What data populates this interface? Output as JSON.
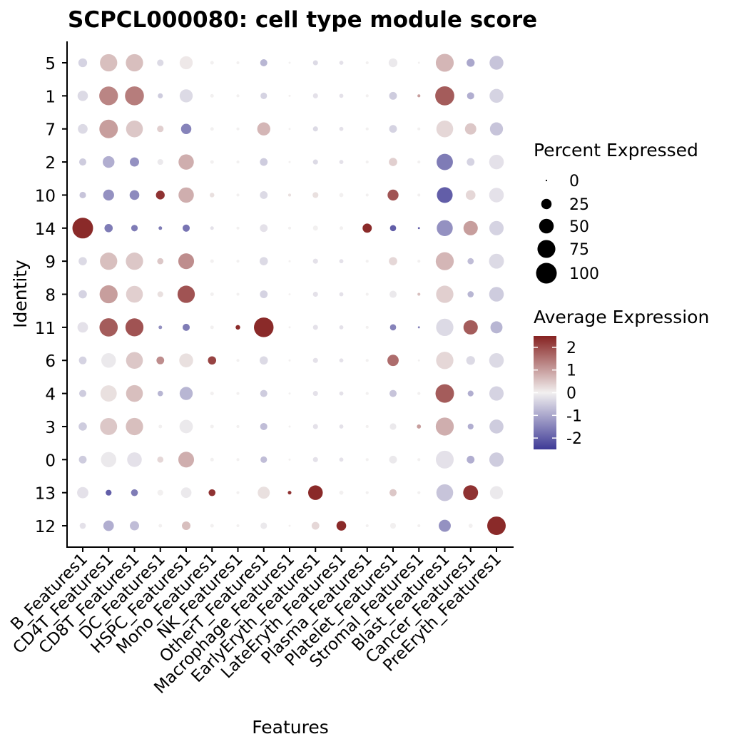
{
  "chart_data": {
    "type": "dotplot",
    "title": "SCPCL000080: cell type module score",
    "xlabel": "Features",
    "ylabel": "Identity",
    "features": [
      "B_Features1",
      "CD4T_Features1",
      "CD8T_Features1",
      "DC_Features1",
      "HSPC_Features1",
      "Mono_Features1",
      "NK_Features1",
      "OtherT_Features1",
      "Macrophage_Features1",
      "EarlyEryth_Features1",
      "LateEryth_Features1",
      "Plasma_Features1",
      "Platelet_Features1",
      "Stromal_Features1",
      "Blast_Features1",
      "Cancer_Features1",
      "PreEryth_Features1"
    ],
    "identities": [
      "5",
      "1",
      "7",
      "2",
      "10",
      "14",
      "9",
      "8",
      "11",
      "6",
      "4",
      "3",
      "0",
      "13",
      "12"
    ],
    "pct_expressed": [
      [
        18,
        70,
        70,
        10,
        40,
        3,
        2,
        12,
        1,
        6,
        4,
        2,
        18,
        1,
        75,
        15,
        45
      ],
      [
        25,
        82,
        84,
        6,
        40,
        3,
        2,
        10,
        1,
        6,
        4,
        2,
        14,
        2,
        85,
        12,
        45
      ],
      [
        22,
        80,
        66,
        10,
        25,
        3,
        2,
        40,
        1,
        6,
        4,
        2,
        14,
        2,
        66,
        30,
        40
      ],
      [
        12,
        32,
        20,
        8,
        55,
        3,
        2,
        14,
        1,
        6,
        4,
        2,
        16,
        2,
        62,
        14,
        50
      ],
      [
        10,
        28,
        22,
        18,
        55,
        5,
        2,
        14,
        2,
        8,
        4,
        2,
        28,
        2,
        58,
        22,
        50
      ],
      [
        100,
        16,
        10,
        3,
        12,
        3,
        2,
        14,
        2,
        6,
        3,
        20,
        9,
        1,
        60,
        48,
        48
      ],
      [
        16,
        70,
        70,
        9,
        58,
        3,
        2,
        16,
        1,
        6,
        4,
        2,
        16,
        2,
        76,
        9,
        52
      ],
      [
        16,
        76,
        66,
        8,
        70,
        3,
        2,
        14,
        1,
        6,
        4,
        2,
        12,
        2,
        70,
        9,
        50
      ],
      [
        26,
        78,
        76,
        3,
        12,
        3,
        5,
        90,
        1,
        6,
        4,
        2,
        9,
        1,
        70,
        48,
        34
      ],
      [
        14,
        50,
        66,
        14,
        45,
        16,
        2,
        16,
        1,
        6,
        4,
        2,
        30,
        1,
        70,
        18,
        50
      ],
      [
        12,
        62,
        66,
        7,
        40,
        3,
        2,
        12,
        1,
        6,
        4,
        2,
        12,
        2,
        80,
        8,
        48
      ],
      [
        16,
        68,
        70,
        3,
        42,
        3,
        2,
        12,
        1,
        6,
        4,
        2,
        10,
        4,
        76,
        8,
        46
      ],
      [
        14,
        55,
        50,
        9,
        58,
        3,
        2,
        10,
        1,
        6,
        4,
        2,
        14,
        2,
        74,
        14,
        48
      ],
      [
        30,
        8,
        11,
        8,
        26,
        11,
        2,
        34,
        3,
        50,
        4,
        2,
        12,
        2,
        66,
        52,
        40
      ],
      [
        9,
        26,
        20,
        3,
        17,
        3,
        2,
        10,
        1,
        14,
        22,
        2,
        8,
        2,
        34,
        4,
        80
      ]
    ],
    "avg_expression": [
      [
        -0.4,
        0.6,
        0.6,
        -0.3,
        0.1,
        0,
        0,
        -0.8,
        0,
        -0.3,
        -0.2,
        0,
        -0.1,
        0,
        0.7,
        -1.0,
        -0.6
      ],
      [
        -0.3,
        1.3,
        1.4,
        -0.5,
        -0.3,
        0,
        0,
        -0.4,
        0,
        -0.2,
        -0.2,
        0,
        -0.5,
        1.0,
        1.8,
        -0.9,
        -0.4
      ],
      [
        -0.3,
        1.0,
        0.5,
        0.4,
        -1.5,
        0,
        0,
        0.7,
        0,
        -0.3,
        -0.2,
        0,
        -0.4,
        0,
        0.3,
        0.5,
        -0.6
      ],
      [
        -0.5,
        -0.9,
        -1.3,
        -0.1,
        0.8,
        0,
        0,
        -0.5,
        0,
        -0.3,
        -0.2,
        0,
        0.4,
        0,
        -1.6,
        -0.4,
        -0.2
      ],
      [
        -0.6,
        -1.3,
        -1.4,
        2.3,
        0.8,
        0.2,
        0,
        -0.3,
        0.2,
        0.2,
        0,
        0,
        1.9,
        0,
        -2.0,
        0.3,
        -0.2
      ],
      [
        2.4,
        -1.6,
        -1.6,
        -1.6,
        -1.7,
        -0.2,
        0,
        -0.2,
        0,
        0,
        0,
        2.4,
        -2.0,
        -2.0,
        -1.3,
        1.0,
        -0.4
      ],
      [
        -0.3,
        0.6,
        0.5,
        0.5,
        1.2,
        0,
        0,
        -0.3,
        0,
        -0.2,
        -0.2,
        0,
        0.3,
        0,
        0.7,
        -0.7,
        -0.3
      ],
      [
        -0.4,
        1.0,
        0.4,
        0.2,
        1.9,
        0,
        0,
        -0.4,
        0,
        -0.2,
        -0.2,
        0,
        -0.1,
        0.6,
        0.4,
        -0.8,
        -0.5
      ],
      [
        -0.2,
        1.8,
        1.9,
        -1.3,
        -1.6,
        0,
        2.4,
        2.4,
        0,
        -0.2,
        -0.2,
        0,
        -1.5,
        -1.5,
        -0.3,
        1.8,
        -0.8
      ],
      [
        -0.4,
        -0.1,
        0.5,
        1.2,
        0.2,
        2.1,
        0,
        -0.3,
        0,
        -0.2,
        -0.2,
        0,
        1.6,
        0,
        0.3,
        -0.3,
        -0.3
      ],
      [
        -0.5,
        0.2,
        0.6,
        -0.8,
        -0.8,
        0,
        0,
        -0.5,
        0,
        -0.2,
        -0.2,
        0,
        -0.6,
        0,
        1.8,
        -0.9,
        -0.4
      ],
      [
        -0.5,
        0.5,
        0.6,
        0,
        -0.1,
        0,
        0,
        -0.7,
        0,
        -0.2,
        -0.2,
        0,
        -0.1,
        1.0,
        0.8,
        -0.9,
        -0.5
      ],
      [
        -0.5,
        -0.1,
        -0.2,
        0.3,
        0.8,
        0,
        0,
        -0.7,
        0,
        -0.2,
        -0.2,
        0,
        -0.1,
        0,
        -0.2,
        -0.9,
        -0.5
      ],
      [
        -0.2,
        -2.0,
        -1.6,
        0,
        -0.1,
        2.3,
        0,
        0.2,
        2.3,
        2.4,
        0,
        0,
        0.5,
        0,
        -0.6,
        2.3,
        -0.1
      ],
      [
        -0.2,
        -0.9,
        -0.7,
        0,
        0.6,
        0,
        0,
        -0.1,
        0,
        0.3,
        2.4,
        0,
        0,
        0,
        -1.3,
        0,
        2.4
      ]
    ],
    "size_legend": {
      "title": "Percent Expressed",
      "values": [
        0,
        25,
        50,
        75,
        100
      ],
      "labels": [
        "0",
        "25",
        "50",
        "75",
        "100"
      ]
    },
    "color_legend": {
      "title": "Average Expression",
      "labels": [
        "2",
        "1",
        "0",
        "-1",
        "-2"
      ],
      "values": [
        2,
        1,
        0,
        -1,
        -2
      ],
      "range": [
        -2.5,
        2.5
      ],
      "colors": {
        "low": "#3e3a96",
        "mid": "#f2f0f0",
        "high": "#862221"
      }
    }
  }
}
